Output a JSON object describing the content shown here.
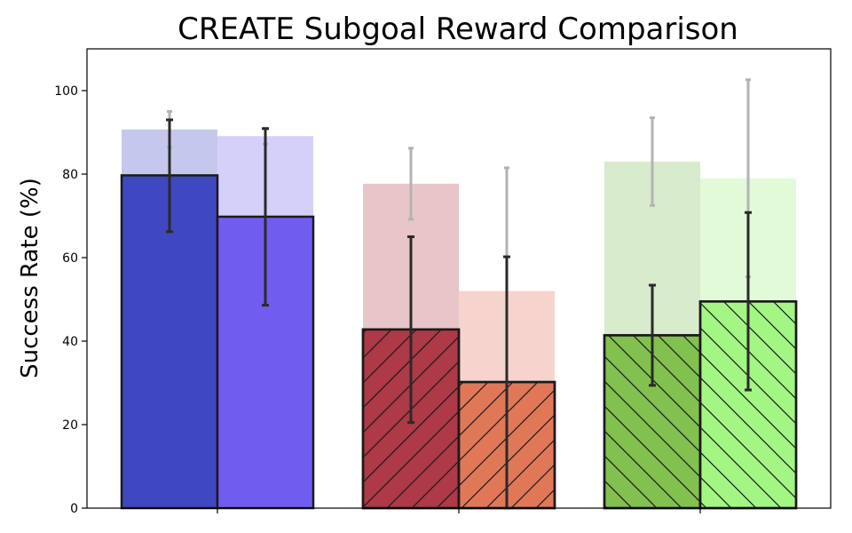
{
  "chart_data": {
    "type": "bar",
    "title": "CREATE Subgoal Reward Comparison",
    "xlabel": "",
    "ylabel": "Success Rate (%)",
    "ylim": [
      0,
      110
    ],
    "yticks": [
      0,
      20,
      40,
      60,
      80,
      100
    ],
    "grid": false,
    "groups": [
      {
        "bars": [
          {
            "value": 79.7,
            "err_low": 66.2,
            "err_high": 93.0,
            "bg_value": 90.7,
            "bg_err_low": 86.4,
            "bg_err_high": 95.0,
            "color": "#3f48c0",
            "bg_color": "#c5c8ec",
            "hatch": "none"
          },
          {
            "value": 69.8,
            "err_low": 48.6,
            "err_high": 90.9,
            "bg_value": 89.1,
            "bg_err_low": 87.2,
            "bg_err_high": 91.0,
            "color": "#715cf0",
            "bg_color": "#d5d0fa",
            "hatch": "none"
          }
        ]
      },
      {
        "bars": [
          {
            "value": 42.8,
            "err_low": 20.5,
            "err_high": 65.0,
            "bg_value": 77.7,
            "bg_err_low": 69.2,
            "bg_err_high": 86.2,
            "color": "#ae3947",
            "bg_color": "#e8c5c9",
            "hatch": "forward"
          },
          {
            "value": 30.2,
            "err_low": 0.0,
            "err_high": 60.2,
            "bg_value": 52.0,
            "bg_err_low": 22.5,
            "bg_err_high": 81.5,
            "color": "#e07858",
            "bg_color": "#f5d4cd",
            "hatch": "forward"
          }
        ]
      },
      {
        "bars": [
          {
            "value": 41.4,
            "err_low": 29.4,
            "err_high": 53.4,
            "bg_value": 83.0,
            "bg_err_low": 72.5,
            "bg_err_high": 93.5,
            "color": "#82c04f",
            "bg_color": "#d8ebcc",
            "hatch": "back"
          },
          {
            "value": 49.5,
            "err_low": 28.3,
            "err_high": 70.8,
            "bg_value": 79.0,
            "bg_err_low": 55.4,
            "bg_err_high": 102.6,
            "color": "#a3f684",
            "bg_color": "#e3fad9",
            "hatch": "back"
          }
        ]
      }
    ]
  }
}
